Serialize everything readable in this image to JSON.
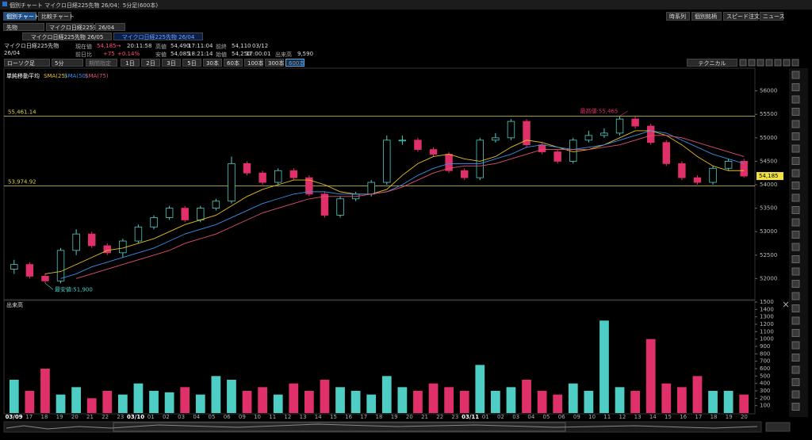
{
  "window": {
    "title": "個別チャート マイクロ日経225先物 26/04：5分足(600本)"
  },
  "tabs": [
    "個別チャート",
    "比較チャート"
  ],
  "top_buttons": [
    "時系列",
    "個別銘柄",
    "スピード注文",
    "ニュース"
  ],
  "selectors": [
    "先物",
    "マイクロ日経225先物",
    "26/04"
  ],
  "contract_tabs": [
    "マイクロ日経225先物 26/05",
    "マイクロ日経225先物 26/04"
  ],
  "quote": {
    "name": "マイクロ日経225先物",
    "month": "26/04",
    "rows": [
      [
        "現在値",
        "54,185→",
        "20:11:58",
        "高値",
        "54,490",
        "17:11:04",
        "前終",
        "54,110",
        "03/12"
      ],
      [
        "前日比",
        "+75",
        "+0.14%",
        "安値",
        "54,085",
        "18:21:14",
        "始値",
        "54,250",
        "17:00:01",
        "出来高",
        "9,590"
      ]
    ]
  },
  "period": {
    "chart_type": "ローソク足",
    "interval": "5分",
    "range": "期間指定",
    "buttons": [
      "1日",
      "2日",
      "3日",
      "5日",
      "30本",
      "60本",
      "100本",
      "300本",
      "600本"
    ],
    "technical": "テクニカル"
  },
  "chart_data": {
    "type": "candlestick",
    "legend_title": "単純移動平均",
    "volume_title": "出来高",
    "up_color": "#4ecdc4",
    "down_color": "#e0306a",
    "open": [
      52200,
      52300,
      52050,
      51950,
      52600,
      52950,
      52700,
      52550,
      52800,
      53100,
      53300,
      53500,
      53250,
      53500,
      53650,
      54450,
      54250,
      54050,
      54300,
      54150,
      53800,
      53350,
      53700,
      53800,
      54050,
      54950,
      54950,
      54750,
      54650,
      54300,
      54150,
      54950,
      55000,
      55350,
      54850,
      54700,
      54500,
      54950,
      55050,
      55100,
      55400,
      55250,
      54900,
      54450,
      54150,
      54050,
      54350,
      54500
    ],
    "high": [
      52400,
      52350,
      52100,
      52650,
      53050,
      53000,
      52750,
      52850,
      53150,
      53350,
      53550,
      53550,
      53550,
      53700,
      54600,
      54500,
      54300,
      54350,
      54350,
      54200,
      53850,
      53750,
      53850,
      54100,
      55050,
      55050,
      55000,
      54800,
      54700,
      54350,
      55000,
      55100,
      55400,
      55400,
      54900,
      54750,
      55000,
      55150,
      55200,
      55465,
      55450,
      55300,
      54950,
      54500,
      54200,
      54400,
      54550,
      54550
    ],
    "low": [
      52100,
      52000,
      51900,
      51900,
      52500,
      52650,
      52500,
      52450,
      52750,
      53050,
      53250,
      53200,
      53200,
      53450,
      53600,
      54200,
      54000,
      54000,
      54100,
      53750,
      53300,
      53300,
      53650,
      53750,
      54000,
      54850,
      54700,
      54600,
      54250,
      54100,
      54100,
      54900,
      54950,
      54800,
      54650,
      54450,
      54450,
      54900,
      55000,
      55050,
      55200,
      54850,
      54400,
      54100,
      54000,
      54000,
      54300,
      54150
    ],
    "close": [
      52300,
      52050,
      51950,
      52600,
      52950,
      52700,
      52550,
      52800,
      53100,
      53300,
      53500,
      53250,
      53500,
      53650,
      54450,
      54250,
      54050,
      54300,
      54150,
      53800,
      53350,
      53700,
      53800,
      54050,
      54950,
      54950,
      54750,
      54650,
      54300,
      54150,
      54950,
      55000,
      55350,
      54850,
      54700,
      54500,
      54950,
      55050,
      55100,
      55400,
      55250,
      54900,
      54450,
      54150,
      54050,
      54350,
      54500,
      54185
    ],
    "volume": [
      450,
      300,
      600,
      250,
      350,
      200,
      300,
      250,
      400,
      300,
      280,
      350,
      250,
      500,
      450,
      300,
      350,
      250,
      400,
      300,
      450,
      350,
      300,
      250,
      500,
      350,
      300,
      400,
      350,
      300,
      650,
      300,
      350,
      450,
      300,
      250,
      400,
      300,
      1250,
      350,
      300,
      1000,
      400,
      350,
      500,
      300,
      300,
      250
    ],
    "series": [
      {
        "name": "SMA(25)",
        "color": "#e8c020",
        "values": [
          null,
          null,
          52100,
          52150,
          52300,
          52450,
          52600,
          52650,
          52750,
          52850,
          53000,
          53150,
          53250,
          53350,
          53550,
          53750,
          53900,
          54000,
          54100,
          54100,
          54000,
          53850,
          53800,
          53800,
          53900,
          54200,
          54450,
          54600,
          54650,
          54550,
          54500,
          54600,
          54800,
          54950,
          54900,
          54800,
          54700,
          54750,
          54850,
          55000,
          55150,
          55150,
          55050,
          54850,
          54600,
          54400,
          54300,
          54300
        ]
      },
      {
        "name": "SMA(50)",
        "color": "#3a8ee8",
        "values": [
          null,
          null,
          null,
          52000,
          52100,
          52250,
          52350,
          52450,
          52550,
          52650,
          52800,
          52950,
          53050,
          53150,
          53300,
          53450,
          53600,
          53700,
          53800,
          53850,
          53850,
          53800,
          53800,
          53800,
          53850,
          54000,
          54200,
          54350,
          54450,
          54450,
          54450,
          54550,
          54650,
          54800,
          54850,
          54800,
          54750,
          54800,
          54850,
          54950,
          55050,
          55150,
          55100,
          54950,
          54800,
          54650,
          54550,
          54450
        ]
      },
      {
        "name": "SMA(75)",
        "color": "#e05070",
        "values": [
          null,
          null,
          null,
          null,
          52000,
          52100,
          52200,
          52300,
          52400,
          52500,
          52600,
          52750,
          52850,
          52950,
          53100,
          53250,
          53400,
          53500,
          53600,
          53700,
          53750,
          53750,
          53750,
          53800,
          53850,
          53950,
          54100,
          54250,
          54350,
          54400,
          54400,
          54450,
          54550,
          54650,
          54750,
          54750,
          54750,
          54750,
          54800,
          54850,
          54950,
          55050,
          55050,
          55000,
          54900,
          54800,
          54700,
          54600
        ]
      }
    ],
    "hlines": [
      {
        "value": 55461.14,
        "label": "55,461.14"
      },
      {
        "value": 53974.92,
        "label": "53,974.92"
      }
    ],
    "annotations": [
      {
        "kind": "high",
        "label": "最高値:55,465",
        "value": 55465
      },
      {
        "kind": "low",
        "label": "最安値:51,900",
        "value": 51900
      }
    ],
    "current": {
      "value": 54185,
      "label": "54,185"
    },
    "ylim": [
      51550,
      56450
    ],
    "yticks": [
      52000,
      52500,
      53000,
      53500,
      54000,
      54500,
      55000,
      55500,
      56000
    ],
    "volume_ylim": [
      0,
      1500
    ],
    "volume_yticks": [
      100,
      200,
      300,
      400,
      500,
      600,
      700,
      800,
      900,
      1000,
      1100,
      1200,
      1300,
      1400,
      1500
    ],
    "grid": false,
    "x_labels": [
      "03/09",
      "17",
      "18",
      "19",
      "20",
      "21",
      "22",
      "23",
      "03/10",
      "01",
      "02",
      "03",
      "04",
      "05",
      "06",
      "09",
      "10",
      "11",
      "12",
      "13",
      "14",
      "15",
      "16",
      "17",
      "18",
      "19",
      "20",
      "21",
      "22",
      "23",
      "03/11",
      "01",
      "02",
      "03",
      "04",
      "05",
      "06",
      "09",
      "10",
      "11",
      "12",
      "13",
      "14",
      "15",
      "16",
      "17",
      "18",
      "19",
      "20"
    ]
  }
}
